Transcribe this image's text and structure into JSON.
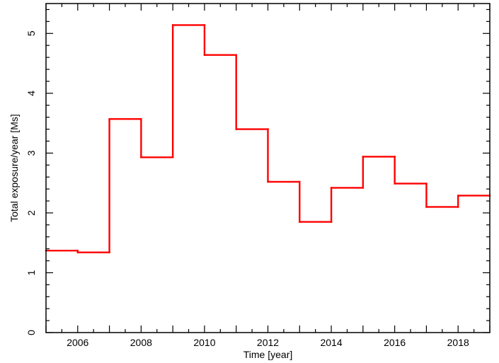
{
  "chart_data": {
    "type": "line",
    "step": "post",
    "title": "",
    "xlabel": "Time [year]",
    "ylabel": "Total exposure/year [Ms]",
    "xlim": [
      2005,
      2019
    ],
    "ylim": [
      0,
      5.5
    ],
    "x_ticks": [
      2006,
      2008,
      2010,
      2012,
      2014,
      2016,
      2018
    ],
    "y_ticks": [
      0,
      1,
      2,
      3,
      4,
      5
    ],
    "series": [
      {
        "color": "#ff0000",
        "points": [
          {
            "x_start": 2005,
            "x_end": 2006,
            "y": 1.37
          },
          {
            "x_start": 2006,
            "x_end": 2007,
            "y": 1.34
          },
          {
            "x_start": 2007,
            "x_end": 2008,
            "y": 3.57
          },
          {
            "x_start": 2008,
            "x_end": 2009,
            "y": 2.93
          },
          {
            "x_start": 2009,
            "x_end": 2010,
            "y": 5.14
          },
          {
            "x_start": 2010,
            "x_end": 2011,
            "y": 4.64
          },
          {
            "x_start": 2011,
            "x_end": 2012,
            "y": 3.4
          },
          {
            "x_start": 2012,
            "x_end": 2013,
            "y": 2.52
          },
          {
            "x_start": 2013,
            "x_end": 2014,
            "y": 1.85
          },
          {
            "x_start": 2014,
            "x_end": 2015,
            "y": 2.42
          },
          {
            "x_start": 2015,
            "x_end": 2016,
            "y": 2.94
          },
          {
            "x_start": 2016,
            "x_end": 2017,
            "y": 2.49
          },
          {
            "x_start": 2017,
            "x_end": 2018,
            "y": 2.1
          },
          {
            "x_start": 2018,
            "x_end": 2019,
            "y": 2.29
          }
        ]
      }
    ],
    "grid": false,
    "legend": "none"
  }
}
